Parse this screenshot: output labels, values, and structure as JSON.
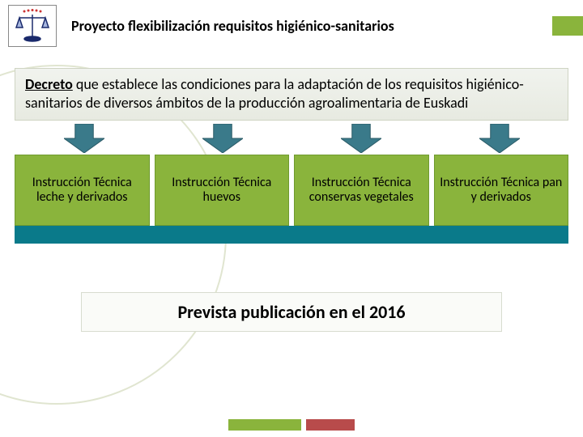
{
  "colors": {
    "green": "#8ab43c",
    "darkgreen": "#6f9a2f",
    "teal": "#0a7a8a",
    "arrow": "#3a7a8a",
    "redaccent": "#b84b4b",
    "bg_circle": "#e0e5d0"
  },
  "header": {
    "title": "Proyecto flexibilización requisitos higiénico-sanitarios",
    "icon_name": "balance-scale-icon"
  },
  "decreto": {
    "lead": "Decreto",
    "text": " que establece las condiciones para la adaptación de los requisitos higiénico-sanitarios de diversos ámbitos de la producción agroalimentaria de Euskadi"
  },
  "cards": [
    {
      "label": "Instrucción Técnica leche y derivados"
    },
    {
      "label": "Instrucción Técnica huevos"
    },
    {
      "label": "Instrucción Técnica conservas vegetales"
    },
    {
      "label": "Instrucción Técnica pan y derivados"
    }
  ],
  "footer": "Prevista publicación en el 2016",
  "arrow": {
    "width": 50,
    "height": 36
  },
  "card_style": {
    "bg": "#8ab43c",
    "border": "#6f9a2f"
  }
}
